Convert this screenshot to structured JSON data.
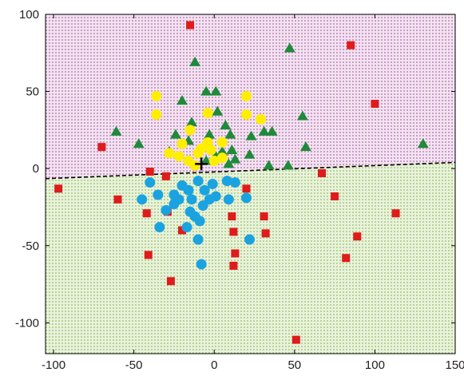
{
  "chart_data": {
    "type": "scatter",
    "title": "",
    "xlabel": "",
    "ylabel": "",
    "xlim": [
      -105,
      150
    ],
    "ylim": [
      -120,
      100
    ],
    "xticks": [
      -100,
      -50,
      0,
      50,
      100,
      150
    ],
    "yticks": [
      100,
      50,
      0,
      -50,
      -100
    ],
    "xtick_labels": [
      "-100",
      "-50",
      "0",
      "50",
      "100",
      "150"
    ],
    "ytick_labels": [
      "100",
      "50",
      "0",
      "-50",
      "-100"
    ],
    "grid": false,
    "legend": "none",
    "regions": [
      {
        "side": "above-line",
        "color": "#9b3d95"
      },
      {
        "side": "below-line",
        "color": "#7aad3a"
      }
    ],
    "decision_boundary": {
      "x": [
        -105,
        150
      ],
      "y": [
        -6.5,
        4
      ],
      "style": "dashed",
      "color": "#000000"
    },
    "centroid_marker": {
      "x": -8,
      "y": 3,
      "symbol": "plus",
      "color": "#000000"
    },
    "series": [
      {
        "marker": "square",
        "color": "#e01b1b",
        "points": [
          [
            -15,
            93
          ],
          [
            -97,
            -13
          ],
          [
            -70,
            14
          ],
          [
            -60,
            -20
          ],
          [
            -40,
            -2
          ],
          [
            -42,
            -29
          ],
          [
            -41,
            -56
          ],
          [
            -30,
            -5
          ],
          [
            -29,
            -28
          ],
          [
            -20,
            -40
          ],
          [
            -27,
            -73
          ],
          [
            11,
            -31
          ],
          [
            12,
            -41
          ],
          [
            13,
            -55
          ],
          [
            12,
            -63
          ],
          [
            20,
            -13
          ],
          [
            31,
            -31
          ],
          [
            32,
            -42
          ],
          [
            51,
            -111
          ],
          [
            67,
            -3
          ],
          [
            75,
            -18
          ],
          [
            82,
            -58
          ],
          [
            89,
            -44
          ],
          [
            85,
            80
          ],
          [
            100,
            42
          ],
          [
            113,
            -29
          ]
        ]
      },
      {
        "marker": "triangle",
        "color": "#1e8a3a",
        "points": [
          [
            -12,
            69
          ],
          [
            -47,
            16
          ],
          [
            -61,
            24
          ],
          [
            -24,
            22
          ],
          [
            -20,
            44
          ],
          [
            -14,
            30
          ],
          [
            -5,
            50
          ],
          [
            1,
            50
          ],
          [
            2,
            37
          ],
          [
            -3,
            22
          ],
          [
            7,
            28
          ],
          [
            10,
            22
          ],
          [
            11,
            12
          ],
          [
            13,
            6
          ],
          [
            9,
            3
          ],
          [
            -28,
            11
          ],
          [
            -16,
            18
          ],
          [
            1,
            8
          ],
          [
            -5,
            5
          ],
          [
            5,
            11
          ],
          [
            22,
            9
          ],
          [
            23,
            21
          ],
          [
            31,
            24
          ],
          [
            36,
            24
          ],
          [
            34,
            2
          ],
          [
            47,
            78
          ],
          [
            46,
            2
          ],
          [
            55,
            34
          ],
          [
            57,
            14
          ],
          [
            130,
            16
          ]
        ]
      },
      {
        "marker": "circle",
        "color": "#ffee00",
        "points": [
          [
            -36,
            47
          ],
          [
            -36,
            35
          ],
          [
            -15,
            25
          ],
          [
            -4,
            36
          ],
          [
            -20,
            16
          ],
          [
            -28,
            10
          ],
          [
            -22,
            8
          ],
          [
            -10,
            10
          ],
          [
            -8,
            13
          ],
          [
            -4,
            17
          ],
          [
            -2,
            12
          ],
          [
            -16,
            5
          ],
          [
            -12,
            2
          ],
          [
            20,
            47
          ],
          [
            20,
            35
          ],
          [
            29,
            32
          ],
          [
            5,
            17
          ],
          [
            0,
            5
          ],
          [
            5,
            7
          ]
        ]
      },
      {
        "marker": "circle",
        "color": "#1aa3e0",
        "points": [
          [
            -40,
            -9
          ],
          [
            -35,
            -17
          ],
          [
            -45,
            -20
          ],
          [
            -25,
            -17
          ],
          [
            -20,
            -11
          ],
          [
            -16,
            -14
          ],
          [
            -14,
            -20
          ],
          [
            -10,
            -8
          ],
          [
            -6,
            -14
          ],
          [
            -7,
            -24
          ],
          [
            -1,
            -10
          ],
          [
            1,
            -18
          ],
          [
            -3,
            -20
          ],
          [
            8,
            -8
          ],
          [
            9,
            -20
          ],
          [
            13,
            -9
          ],
          [
            20,
            -19
          ],
          [
            -30,
            -27
          ],
          [
            -25,
            -23
          ],
          [
            -22,
            -20
          ],
          [
            -15,
            -28
          ],
          [
            -12,
            -31
          ],
          [
            -17,
            -38
          ],
          [
            -34,
            -38
          ],
          [
            -9,
            -34
          ],
          [
            -10,
            -46
          ],
          [
            -8,
            -62
          ],
          [
            22,
            -46
          ]
        ]
      }
    ]
  }
}
